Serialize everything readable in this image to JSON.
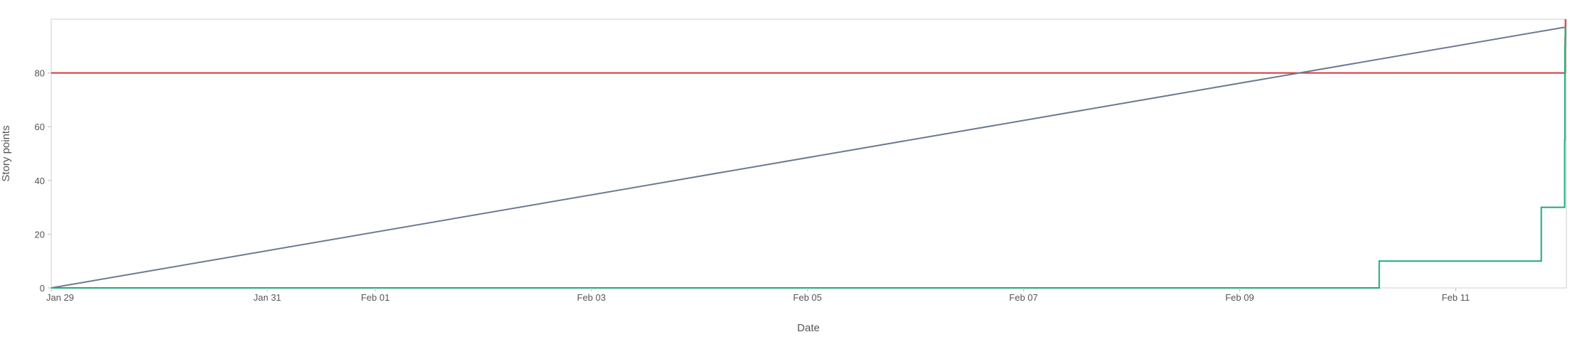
{
  "chart_data": {
    "type": "line",
    "xlabel": "Date",
    "ylabel": "Story points",
    "xlim": [
      "2024-01-29",
      "2024-02-12T00:35"
    ],
    "ylim": [
      0,
      100
    ],
    "x_ticks": [
      {
        "date": "2024-01-29",
        "label": "Jan 29"
      },
      {
        "date": "2024-01-31",
        "label": "Jan 31"
      },
      {
        "date": "2024-02-01",
        "label": "Feb 01"
      },
      {
        "date": "2024-02-03",
        "label": "Feb 03"
      },
      {
        "date": "2024-02-05",
        "label": "Feb 05"
      },
      {
        "date": "2024-02-07",
        "label": "Feb 07"
      },
      {
        "date": "2024-02-09",
        "label": "Feb 09"
      },
      {
        "date": "2024-02-11",
        "label": "Feb 11"
      }
    ],
    "y_ticks": [
      0,
      20,
      40,
      60,
      80
    ],
    "grid": false,
    "series": [
      {
        "color": "#d9363e",
        "step": true,
        "points": [
          {
            "x": "2024-01-29T00:00",
            "y": 80
          },
          {
            "x": "2024-02-12T00:15",
            "y": 80
          },
          {
            "x": "2024-02-12T00:18",
            "y": 93
          },
          {
            "x": "2024-02-12T00:22",
            "y": 100
          }
        ]
      },
      {
        "color": "#6b7a92",
        "step": false,
        "points": [
          {
            "x": "2024-01-29T00:00",
            "y": 0
          },
          {
            "x": "2024-02-12T00:10",
            "y": 97
          }
        ]
      },
      {
        "color": "#1faa77",
        "step": true,
        "points": [
          {
            "x": "2024-01-29T00:00",
            "y": 0
          },
          {
            "x": "2024-02-10T07:00",
            "y": 0
          },
          {
            "x": "2024-02-10T07:00",
            "y": 10
          },
          {
            "x": "2024-02-11T19:00",
            "y": 10
          },
          {
            "x": "2024-02-11T19:00",
            "y": 30
          },
          {
            "x": "2024-02-12T00:10",
            "y": 30
          },
          {
            "x": "2024-02-12T00:12",
            "y": 55
          },
          {
            "x": "2024-02-12T00:15",
            "y": 90
          },
          {
            "x": "2024-02-12T00:20",
            "y": 97
          }
        ]
      }
    ]
  }
}
